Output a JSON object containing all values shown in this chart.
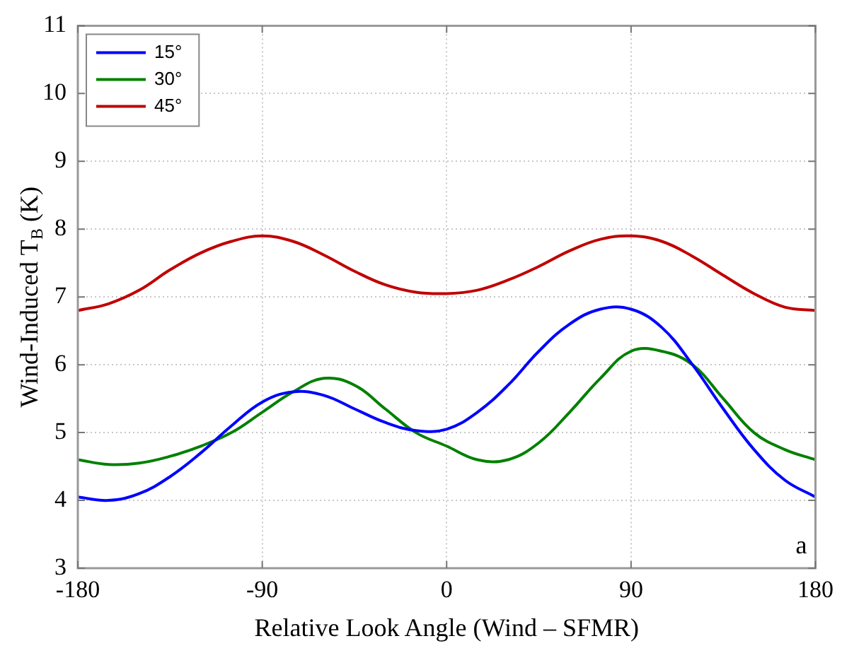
{
  "chart_data": {
    "type": "line",
    "xlabel": "Relative Look Angle (Wind – SFMR)",
    "ylabel": "Wind-Induced T$_{B}$ (K)",
    "x": [
      -180,
      -165,
      -150,
      -135,
      -120,
      -105,
      -90,
      -75,
      -60,
      -45,
      -30,
      -15,
      0,
      15,
      30,
      45,
      60,
      75,
      90,
      105,
      120,
      135,
      150,
      165,
      180
    ],
    "series": [
      {
        "name": "15°",
        "color": "#0000ff",
        "values": [
          4.05,
          4.0,
          4.1,
          4.35,
          4.7,
          5.1,
          5.45,
          5.6,
          5.55,
          5.35,
          5.15,
          5.03,
          5.05,
          5.3,
          5.7,
          6.2,
          6.6,
          6.82,
          6.82,
          6.55,
          6.0,
          5.35,
          4.75,
          4.3,
          4.05
        ]
      },
      {
        "name": "30°",
        "color": "#008000",
        "values": [
          4.6,
          4.53,
          4.55,
          4.65,
          4.8,
          5.0,
          5.3,
          5.6,
          5.8,
          5.7,
          5.35,
          5.0,
          4.8,
          4.6,
          4.6,
          4.85,
          5.3,
          5.8,
          6.2,
          6.2,
          6.0,
          5.5,
          5.0,
          4.75,
          4.6
        ]
      },
      {
        "name": "45°",
        "color": "#c00000",
        "values": [
          6.8,
          6.9,
          7.1,
          7.4,
          7.65,
          7.82,
          7.9,
          7.82,
          7.62,
          7.38,
          7.18,
          7.07,
          7.05,
          7.1,
          7.25,
          7.45,
          7.68,
          7.85,
          7.9,
          7.82,
          7.6,
          7.32,
          7.05,
          6.85,
          6.8
        ]
      }
    ],
    "xlim": [
      -180,
      180
    ],
    "xticks": [
      -180,
      -90,
      0,
      90,
      180
    ],
    "ylim": [
      3,
      11
    ],
    "yticks": [
      3,
      4,
      5,
      6,
      7,
      8,
      9,
      10,
      11
    ],
    "grid": true,
    "legend": "top left",
    "marker": "none",
    "line_style": "solid",
    "annotations": [
      "a"
    ]
  }
}
